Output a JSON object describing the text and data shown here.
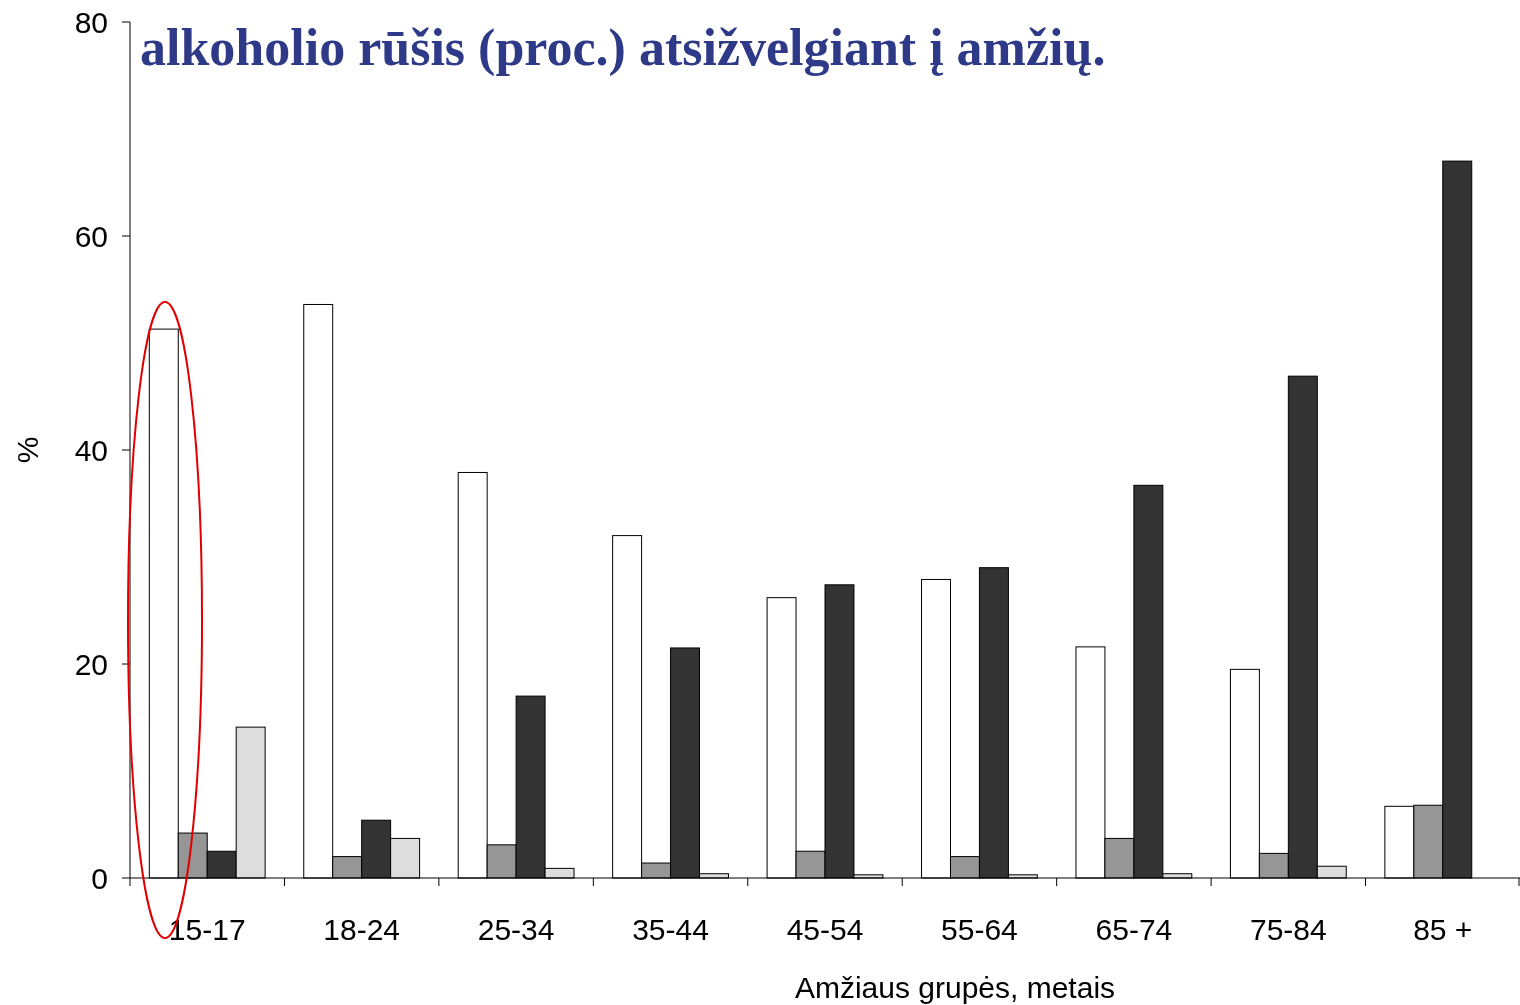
{
  "chart_data": {
    "type": "bar",
    "title": "alkoholio rūšis (proc.) atsižvelgiant į amžių.",
    "xlabel": "Amžiaus grupės, metais",
    "ylabel": "%",
    "categories": [
      "15-17",
      "18-24",
      "25-34",
      "35-44",
      "45-54",
      "55-64",
      "65-74",
      "75-84",
      "85 +"
    ],
    "series": [
      {
        "color": "#ffffff",
        "values": [
          51.3,
          53.6,
          37.9,
          32.0,
          26.2,
          27.9,
          21.6,
          19.5,
          6.7
        ]
      },
      {
        "color": "#969696",
        "values": [
          4.2,
          2.0,
          3.1,
          1.4,
          2.5,
          2.0,
          3.7,
          2.3,
          6.8
        ]
      },
      {
        "color": "#333333",
        "values": [
          2.5,
          5.4,
          17.0,
          21.5,
          27.4,
          29.0,
          36.7,
          46.9,
          67.0
        ]
      },
      {
        "color": "#dddddd",
        "values": [
          14.1,
          3.7,
          0.9,
          0.4,
          0.3,
          0.3,
          0.4,
          1.1,
          null
        ]
      }
    ],
    "ylim": [
      0,
      80
    ],
    "yticks": [
      0,
      20,
      40,
      60,
      80
    ],
    "grid": false
  }
}
